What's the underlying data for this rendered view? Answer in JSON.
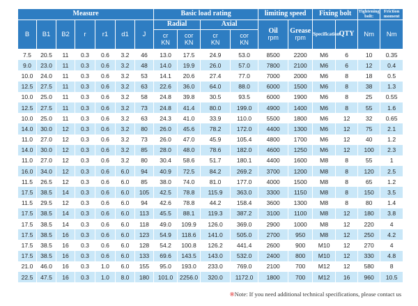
{
  "header": {
    "groups": [
      "Measure",
      "Basic load rating",
      "limiting speed",
      "Fixing bolt",
      "Tightening bolt:",
      "Friction moment"
    ],
    "measure": [
      "B",
      "B1",
      "B2",
      "r",
      "r1",
      "d1",
      "J"
    ],
    "load": [
      "Radial",
      "Axial"
    ],
    "load_units": [
      {
        "name": "cr",
        "unit": "KN"
      },
      {
        "name": "cor",
        "unit": "KN"
      },
      {
        "name": "cr",
        "unit": "KN"
      },
      {
        "name": "cor",
        "unit": "KN"
      }
    ],
    "speed": [
      {
        "name": "Oil",
        "unit": "rpm"
      },
      {
        "name": "Grease",
        "unit": "rpm"
      }
    ],
    "bolt": [
      "Specification",
      "QTY"
    ],
    "units": [
      "Nm",
      "Nm"
    ]
  },
  "table": {
    "rows": [
      [
        "7.5",
        "20.5",
        "11",
        "0.3",
        "0.6",
        "3.2",
        "46",
        "13.0",
        "17.5",
        "24.9",
        "53.0",
        "8500",
        "2200",
        "M6",
        "6",
        "10",
        "0.35"
      ],
      [
        "9.0",
        "23.0",
        "11",
        "0.3",
        "0.6",
        "3.2",
        "48",
        "14.0",
        "19.9",
        "26.0",
        "57.0",
        "7800",
        "2100",
        "M6",
        "6",
        "12",
        "0.4"
      ],
      [
        "10.0",
        "24.0",
        "11",
        "0.3",
        "0.6",
        "3.2",
        "53",
        "14.1",
        "20.6",
        "27.4",
        "77.0",
        "7000",
        "2000",
        "M6",
        "8",
        "18",
        "0.5"
      ],
      [
        "12.5",
        "27.5",
        "11",
        "0.3",
        "0.6",
        "3.2",
        "63",
        "22.6",
        "36.0",
        "64.0",
        "88.0",
        "6000",
        "1500",
        "M6",
        "8",
        "38",
        "1.3"
      ],
      [
        "10.0",
        "25.0",
        "11",
        "0.3",
        "0.6",
        "3.2",
        "58",
        "24.8",
        "39.8",
        "30.5",
        "93.5",
        "6000",
        "1900",
        "M6",
        "8",
        "25",
        "0.55"
      ],
      [
        "12.5",
        "27.5",
        "11",
        "0.3",
        "0.6",
        "3.2",
        "73",
        "24.8",
        "41.4",
        "80.0",
        "199.0",
        "4900",
        "1400",
        "M6",
        "8",
        "55",
        "1.6"
      ],
      [
        "10.0",
        "25.0",
        "11",
        "0.3",
        "0.6",
        "3.2",
        "63",
        "24.3",
        "41.0",
        "33.9",
        "110.0",
        "5500",
        "1800",
        "M6",
        "12",
        "32",
        "0.65"
      ],
      [
        "14.0",
        "30.0",
        "12",
        "0.3",
        "0.6",
        "3.2",
        "80",
        "26.0",
        "45.6",
        "78.2",
        "172.0",
        "4400",
        "1300",
        "M6",
        "12",
        "75",
        "2.1"
      ],
      [
        "11.0",
        "27.0",
        "12",
        "0.3",
        "0.6",
        "3.2",
        "73",
        "26.0",
        "47.0",
        "45.9",
        "105.4",
        "4800",
        "1700",
        "M6",
        "12",
        "40",
        "1.2"
      ],
      [
        "14.0",
        "30.0",
        "12",
        "0.3",
        "0.6",
        "3.2",
        "85",
        "28.0",
        "48.0",
        "78.6",
        "182.0",
        "4600",
        "1250",
        "M6",
        "12",
        "100",
        "2.3"
      ],
      [
        "11.0",
        "27.0",
        "12",
        "0.3",
        "0.6",
        "3.2",
        "80",
        "30.4",
        "58.6",
        "51.7",
        "180.1",
        "4400",
        "1600",
        "M8",
        "8",
        "55",
        "1"
      ],
      [
        "16.0",
        "34.0",
        "12",
        "0.3",
        "0.6",
        "6.0",
        "94",
        "40.9",
        "72.5",
        "84.2",
        "269.2",
        "3700",
        "1200",
        "M8",
        "8",
        "120",
        "2.5"
      ],
      [
        "11.5",
        "26.5",
        "12",
        "0.3",
        "0.6",
        "6.0",
        "85",
        "38.0",
        "74.0",
        "81.0",
        "177.0",
        "4000",
        "1500",
        "M8",
        "8",
        "65",
        "1.2"
      ],
      [
        "17.5",
        "38.5",
        "14",
        "0.3",
        "0.6",
        "6.0",
        "105",
        "42.5",
        "78.8",
        "115.9",
        "363.0",
        "3300",
        "1150",
        "M8",
        "8",
        "150",
        "3.5"
      ],
      [
        "11.5",
        "29.5",
        "12",
        "0.3",
        "0.6",
        "6.0",
        "94",
        "42.6",
        "78.8",
        "44.2",
        "158.4",
        "3600",
        "1300",
        "M8",
        "8",
        "80",
        "1.4"
      ],
      [
        "17.5",
        "38.5",
        "14",
        "0.3",
        "0.6",
        "6.0",
        "113",
        "45.5",
        "88.1",
        "119.3",
        "387.2",
        "3100",
        "1100",
        "M8",
        "12",
        "180",
        "3.8"
      ],
      [
        "17.5",
        "38.5",
        "14",
        "0.3",
        "0.6",
        "6.0",
        "118",
        "49.0",
        "109.9",
        "126.0",
        "369.0",
        "2900",
        "1000",
        "M8",
        "12",
        "220",
        "4"
      ],
      [
        "17.5",
        "38.5",
        "16",
        "0.3",
        "0.6",
        "6.0",
        "123",
        "54.9",
        "118.6",
        "141.0",
        "505.0",
        "2700",
        "950",
        "M8",
        "12",
        "250",
        "4.2"
      ],
      [
        "17.5",
        "38.5",
        "16",
        "0.3",
        "0.6",
        "6.0",
        "128",
        "54.2",
        "100.8",
        "126.2",
        "441.4",
        "2600",
        "900",
        "M10",
        "12",
        "270",
        "4"
      ],
      [
        "17.5",
        "38.5",
        "16",
        "0.3",
        "0.6",
        "6.0",
        "133",
        "69.6",
        "143.5",
        "143.0",
        "532.0",
        "2400",
        "800",
        "M10",
        "12",
        "330",
        "4.8"
      ],
      [
        "21.0",
        "46.0",
        "16",
        "0.3",
        "1.0",
        "6.0",
        "155",
        "95.0",
        "193.0",
        "233.0",
        "769.0",
        "2100",
        "700",
        "M12",
        "12",
        "580",
        "8"
      ],
      [
        "22.5",
        "47.5",
        "16",
        "0.3",
        "1.0",
        "8.0",
        "180",
        "101.0",
        "2256.0",
        "320.0",
        "1172.0",
        "1800",
        "700",
        "M12",
        "16",
        "960",
        "10.5"
      ]
    ]
  },
  "note": {
    "mark": "※",
    "text": "Note: If you need additional technical specifications, please contact us"
  }
}
